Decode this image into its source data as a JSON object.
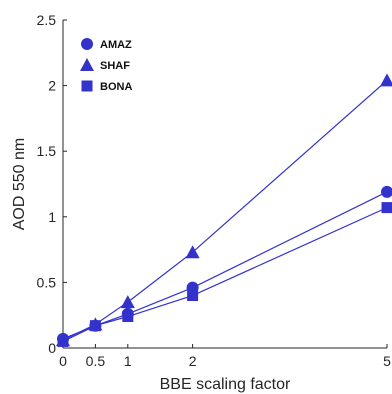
{
  "chart_data": {
    "type": "line",
    "title": "",
    "xlabel": "BBE scaling factor",
    "ylabel": "AOD 550 nm",
    "x": [
      0,
      0.5,
      1,
      2,
      5
    ],
    "xticks": [
      "0",
      "0.5",
      "1",
      "2",
      "5"
    ],
    "yticks": [
      "0",
      "0.5",
      "1",
      "1.5",
      "2",
      "2.5"
    ],
    "xlim": [
      0,
      5
    ],
    "ylim": [
      0,
      2.5
    ],
    "grid": false,
    "legend_position": "top-left",
    "color": "#3333cc",
    "series": [
      {
        "name": "AMAZ",
        "marker": "circle",
        "values": [
          0.07,
          0.17,
          0.26,
          0.46,
          1.19
        ]
      },
      {
        "name": "SHAF",
        "marker": "triangle",
        "values": [
          0.06,
          0.18,
          0.35,
          0.73,
          2.04
        ]
      },
      {
        "name": "BONA",
        "marker": "square",
        "values": [
          0.05,
          0.17,
          0.24,
          0.4,
          1.07
        ]
      }
    ]
  }
}
